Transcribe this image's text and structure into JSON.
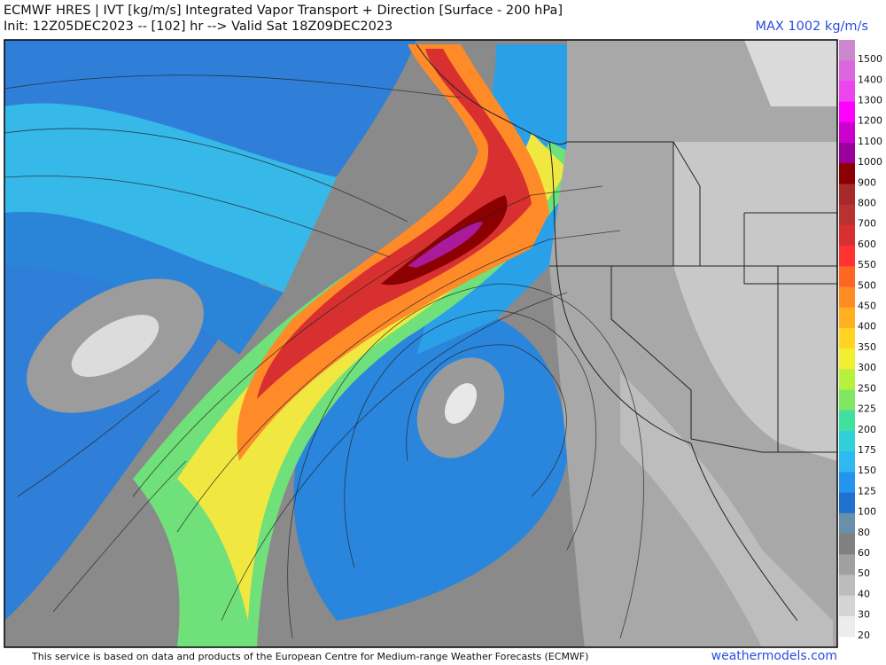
{
  "header": {
    "title": "ECMWF HRES | IVT [kg/m/s] Integrated Vapor Transport + Direction [Surface - 200 hPa]",
    "subtitle": "Init: 12Z05DEC2023 -- [102] hr --> Valid Sat 18Z09DEC2023",
    "max_label": "MAX 1002 kg/m/s"
  },
  "colorbar": [
    {
      "value": 1500,
      "color": "#cc88cc"
    },
    {
      "value": 1400,
      "color": "#dd66dd"
    },
    {
      "value": 1300,
      "color": "#ee44ee"
    },
    {
      "value": 1200,
      "color": "#ff00ff"
    },
    {
      "value": 1100,
      "color": "#cc00cc"
    },
    {
      "value": 1000,
      "color": "#990099"
    },
    {
      "value": 900,
      "color": "#8b0000"
    },
    {
      "value": 800,
      "color": "#a52a2a"
    },
    {
      "value": 700,
      "color": "#b83232"
    },
    {
      "value": 600,
      "color": "#d83030"
    },
    {
      "value": 550,
      "color": "#ff3333"
    },
    {
      "value": 500,
      "color": "#ff6622"
    },
    {
      "value": 450,
      "color": "#ff8c22"
    },
    {
      "value": 400,
      "color": "#ffb020"
    },
    {
      "value": 350,
      "color": "#ffd522"
    },
    {
      "value": 300,
      "color": "#f0f030"
    },
    {
      "value": 250,
      "color": "#b8f040"
    },
    {
      "value": 225,
      "color": "#80e860"
    },
    {
      "value": 200,
      "color": "#40e0a0"
    },
    {
      "value": 175,
      "color": "#30d0d8"
    },
    {
      "value": 150,
      "color": "#30b8f0"
    },
    {
      "value": 125,
      "color": "#2494f0"
    },
    {
      "value": 100,
      "color": "#2070d0"
    },
    {
      "value": 80,
      "color": "#6a8fa8"
    },
    {
      "value": 60,
      "color": "#808080"
    },
    {
      "value": 50,
      "color": "#a0a0a0"
    },
    {
      "value": 40,
      "color": "#bcbcbc"
    },
    {
      "value": 30,
      "color": "#d4d4d4"
    },
    {
      "value": 20,
      "color": "#ececec"
    }
  ],
  "footer": {
    "notice": "This service is based on data and products of the European Centre for Medium-range Weather Forecasts (ECMWF)",
    "site": "weathermodels.com"
  }
}
